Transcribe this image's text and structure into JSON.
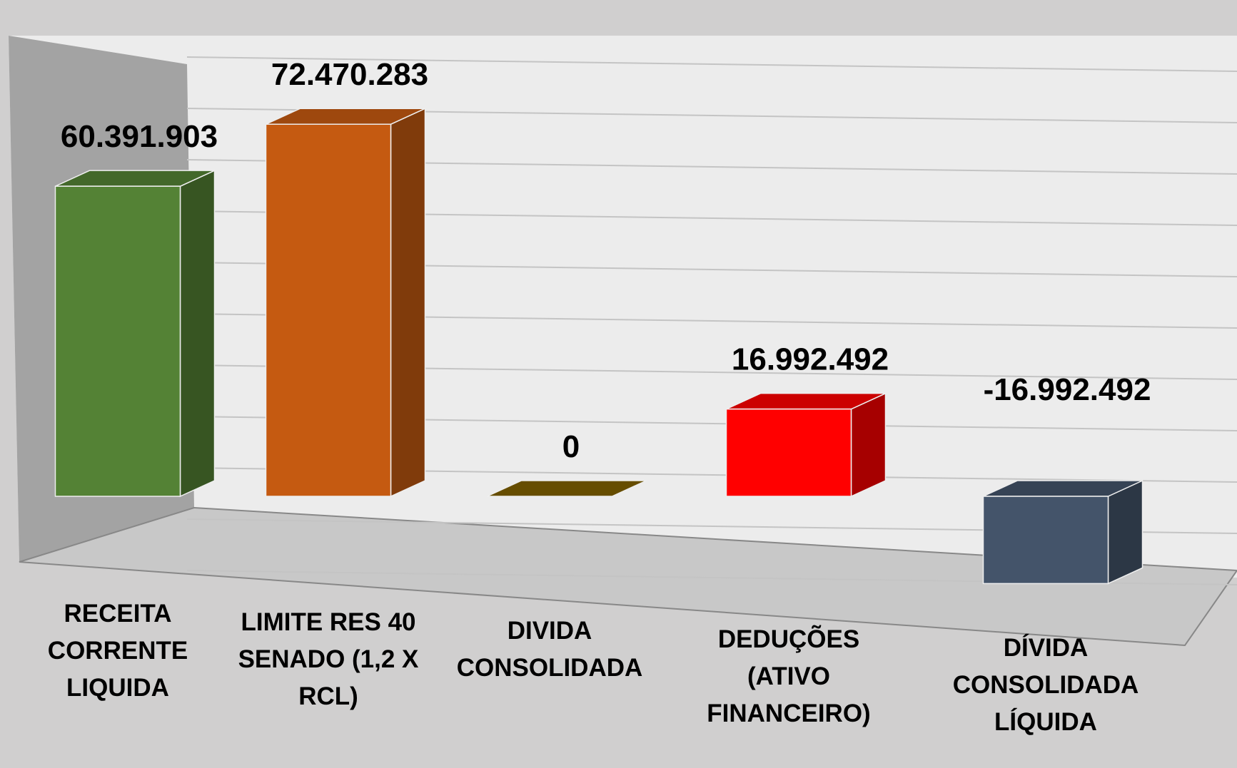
{
  "chart_data": {
    "type": "bar3d",
    "categories": [
      "RECEITA CORRENTE LIQUIDA",
      "LIMITE RES 40 SENADO (1,2 X RCL)",
      "DIVIDA CONSOLIDADA",
      "DEDUÇÕES (ATIVO FINANCEIRO)",
      "DÍVIDA CONSOLIDADA LÍQUIDA"
    ],
    "values": [
      60391903,
      72470283,
      0,
      16992492,
      -16992492
    ],
    "value_labels": [
      "60.391.903",
      "72.470.283",
      "0",
      "16.992.492",
      "-16.992.492"
    ],
    "colors": [
      "#548235",
      "#c55a11",
      "#7f6000",
      "#ff0000",
      "#44546a"
    ],
    "ylim": [
      -20000000,
      80000000
    ],
    "yticks": [
      -20000000,
      -10000000,
      0,
      10000000,
      20000000,
      30000000,
      40000000,
      50000000,
      60000000,
      70000000,
      80000000
    ],
    "grid": true
  }
}
